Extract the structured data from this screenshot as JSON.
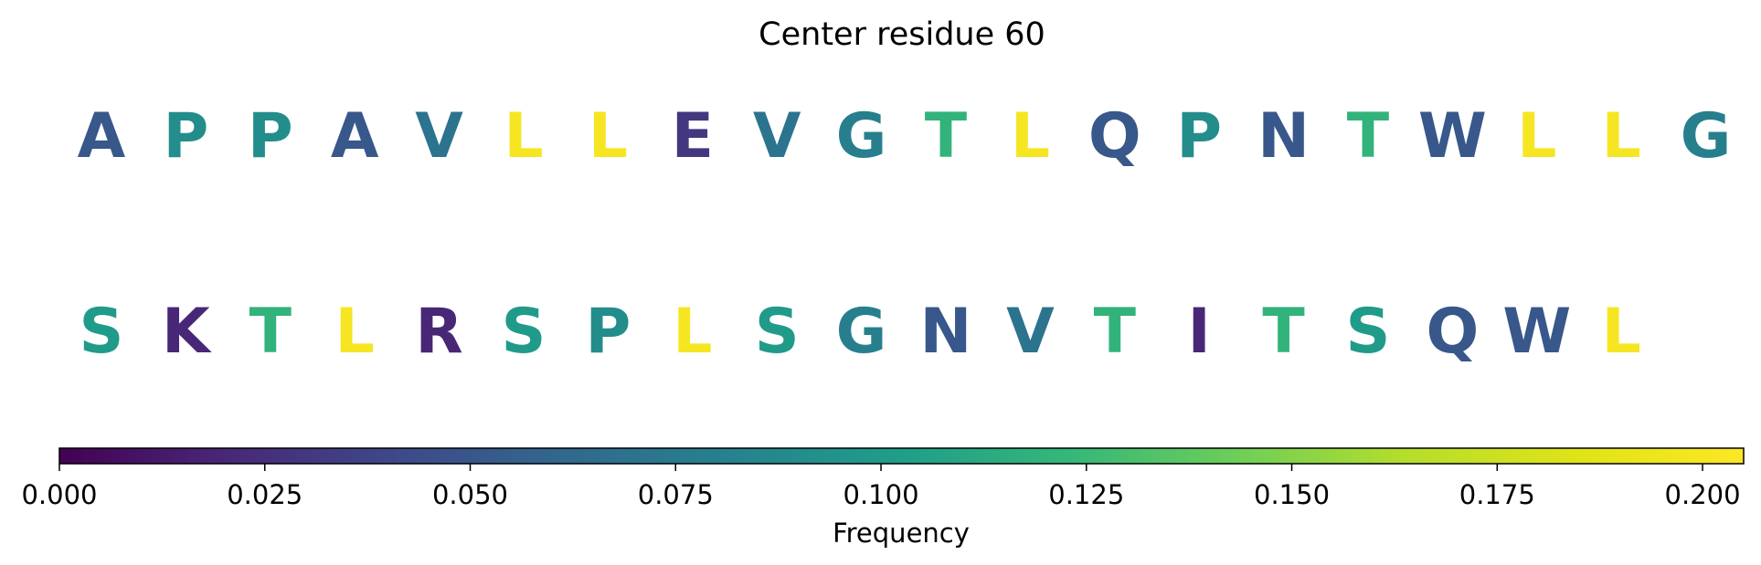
{
  "chart_data": {
    "type": "sequence_logo",
    "title": "Center residue 60",
    "rows": [
      {
        "residues": [
          "A",
          "P",
          "P",
          "A",
          "V",
          "L",
          "L",
          "E",
          "V",
          "G",
          "T",
          "L",
          "Q",
          "P",
          "N",
          "T",
          "W",
          "L",
          "L",
          "G"
        ],
        "frequencies": [
          0.05,
          0.09,
          0.09,
          0.05,
          0.07,
          0.2,
          0.2,
          0.03,
          0.07,
          0.08,
          0.12,
          0.2,
          0.05,
          0.09,
          0.05,
          0.12,
          0.05,
          0.2,
          0.2,
          0.08
        ]
      },
      {
        "residues": [
          "S",
          "K",
          "T",
          "L",
          "R",
          "S",
          "P",
          "L",
          "S",
          "G",
          "N",
          "V",
          "T",
          "I",
          "T",
          "S",
          "Q",
          "W",
          "L"
        ],
        "frequencies": [
          0.1,
          0.02,
          0.12,
          0.2,
          0.02,
          0.1,
          0.09,
          0.2,
          0.1,
          0.08,
          0.05,
          0.07,
          0.12,
          0.02,
          0.12,
          0.1,
          0.05,
          0.05,
          0.2
        ]
      }
    ],
    "colorbar": {
      "label": "Frequency",
      "colormap": "viridis",
      "range": [
        0.0,
        0.205
      ],
      "ticks": [
        0.0,
        0.025,
        0.05,
        0.075,
        0.1,
        0.125,
        0.15,
        0.175,
        0.2
      ],
      "tick_labels": [
        "0.000",
        "0.025",
        "0.050",
        "0.075",
        "0.100",
        "0.125",
        "0.150",
        "0.175",
        "0.200"
      ]
    }
  }
}
